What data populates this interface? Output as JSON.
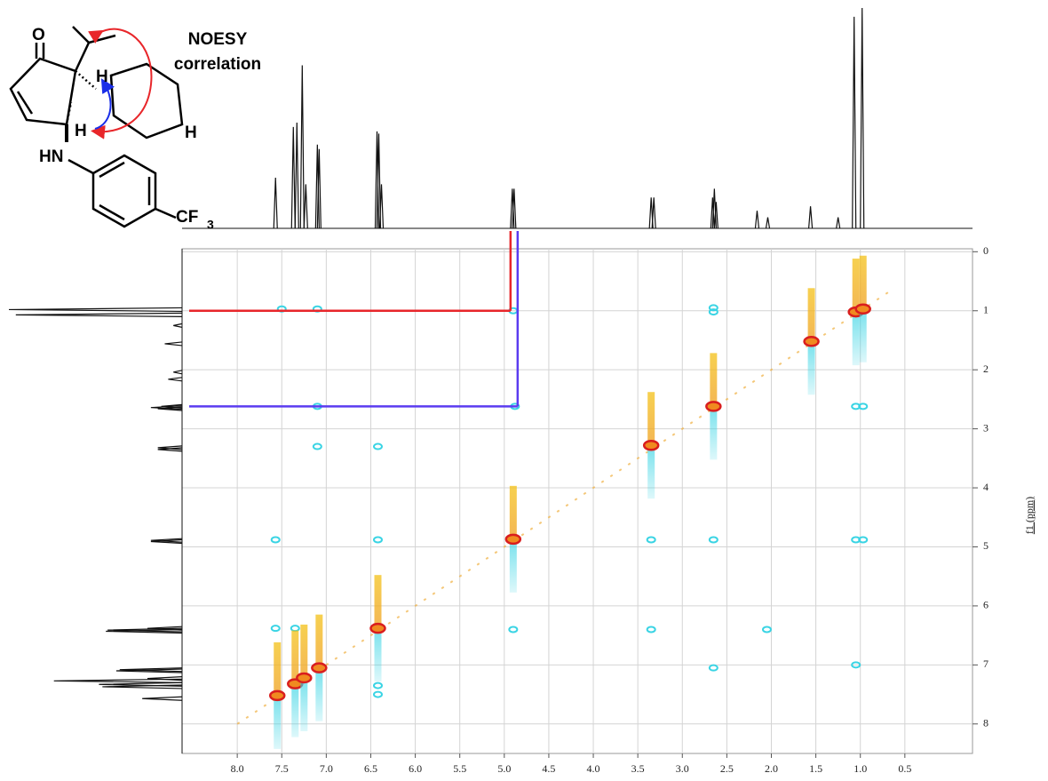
{
  "chart_data": {
    "type": "noesy",
    "y_axis_label": "f1 (ppm)",
    "annotation": [
      "NOESY",
      "correlation"
    ],
    "molecule_labels": {
      "o": "O",
      "h1": "H",
      "h2": "H",
      "h3": "H",
      "hn": "HN",
      "cf": "CF",
      "sub3": "3"
    },
    "xlim": [
      8.62,
      -0.26
    ],
    "ylim": [
      -0.05,
      8.5
    ],
    "xticks": [
      {
        "value": 8,
        "label": "8.0"
      },
      7.5,
      {
        "value": 7,
        "label": "7.0"
      },
      6.5,
      {
        "value": 6,
        "label": "6.0"
      },
      5.5,
      {
        "value": 5,
        "label": "5.0"
      },
      4.5,
      {
        "value": 4,
        "label": "4.0"
      },
      3.5,
      {
        "value": 3,
        "label": "3.0"
      },
      2.5,
      {
        "value": 2,
        "label": "2.0"
      },
      1.5,
      {
        "value": 1,
        "label": "1.0"
      },
      0.5
    ],
    "yticks": [
      0,
      1,
      2,
      3,
      4,
      5,
      6,
      7,
      8
    ],
    "grid": true,
    "series": [
      {
        "color": "#d91e1e",
        "x": [
          7.55,
          7.35,
          7.25,
          7.08,
          6.42,
          4.9,
          3.35,
          2.65,
          1.55,
          1.05,
          0.97
        ],
        "values": [
          7.52,
          7.32,
          7.22,
          7.05,
          6.38,
          4.87,
          3.28,
          2.62,
          1.52,
          1.02,
          0.97
        ]
      },
      {
        "color": "#3ad4e4",
        "x": [
          7.5,
          7.1,
          4.9,
          2.65,
          2.65,
          7.1,
          4.88,
          1.05,
          0.97,
          6.42,
          7.1,
          7.57,
          6.42,
          2.65,
          1.05,
          0.97,
          3.35,
          7.57,
          7.35,
          4.9,
          3.35,
          2.65,
          6.42,
          6.42,
          1.05,
          2.05
        ],
        "values": [
          0.97,
          0.97,
          1.0,
          0.95,
          1.02,
          2.62,
          2.62,
          2.62,
          2.62,
          3.3,
          3.3,
          4.88,
          4.88,
          4.88,
          4.88,
          4.88,
          4.88,
          6.38,
          6.38,
          6.4,
          6.4,
          7.05,
          7.35,
          7.5,
          7.0,
          6.4
        ]
      }
    ],
    "projection": {
      "color": "#111111",
      "x": [
        7.57,
        7.37,
        7.33,
        7.27,
        7.23,
        7.1,
        7.08,
        6.43,
        6.41,
        6.38,
        4.91,
        4.89,
        3.35,
        3.32,
        2.66,
        2.64,
        2.62,
        2.16,
        2.04,
        1.56,
        1.25,
        1.07,
        0.98
      ],
      "values": [
        0.23,
        0.46,
        0.48,
        0.74,
        0.2,
        0.38,
        0.36,
        0.44,
        0.43,
        0.2,
        0.18,
        0.18,
        0.14,
        0.14,
        0.14,
        0.18,
        0.12,
        0.08,
        0.05,
        0.1,
        0.05,
        0.96,
        1.0
      ]
    },
    "guides": [
      {
        "color": "#e8262a",
        "x": 4.93,
        "y": 1.0
      },
      {
        "color": "#5b3cf0",
        "x": 4.85,
        "y": 2.62
      }
    ]
  }
}
